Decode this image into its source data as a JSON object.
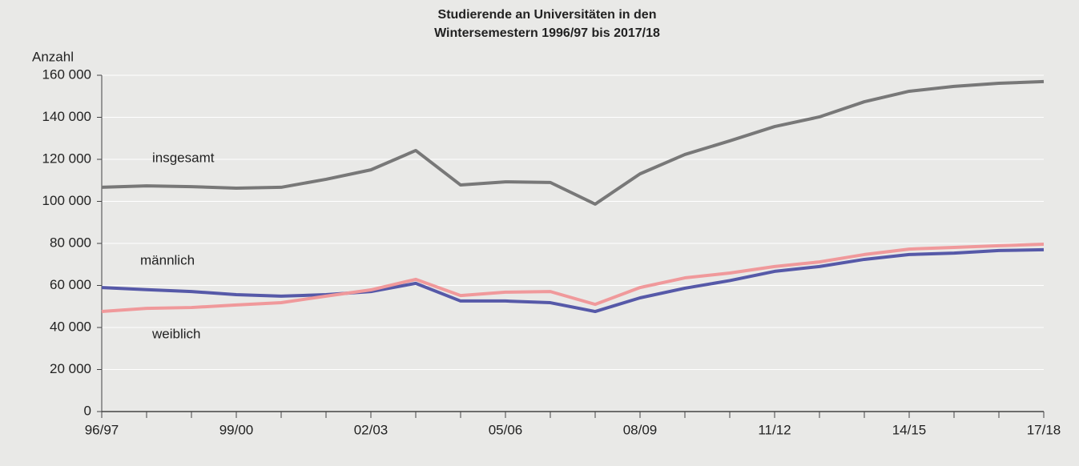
{
  "chart_data": {
    "type": "line",
    "title": [
      "Studierende an Universitäten in den",
      "Wintersemestern 1996/97 bis 2017/18"
    ],
    "y_label": "Anzahl",
    "categories": [
      "96/97",
      null,
      null,
      "99/00",
      null,
      null,
      "02/03",
      null,
      null,
      "05/06",
      null,
      null,
      "08/09",
      null,
      null,
      "11/12",
      null,
      null,
      "14/15",
      null,
      null,
      "17/18"
    ],
    "series": [
      {
        "name": "insgesamt",
        "color": "#787878",
        "values": [
          106700,
          107400,
          107000,
          106300,
          106700,
          110500,
          115000,
          124200,
          107800,
          109300,
          109000,
          98700,
          113100,
          122300,
          128800,
          135600,
          140200,
          147400,
          152400,
          154700,
          156200,
          157000
        ]
      },
      {
        "name": "männlich",
        "color": "#5659a8",
        "values": [
          59000,
          58000,
          57100,
          55600,
          54900,
          55600,
          57100,
          61000,
          52600,
          52600,
          51800,
          47600,
          54100,
          58700,
          62300,
          66700,
          69000,
          72400,
          74700,
          75400,
          76600,
          77000
        ]
      },
      {
        "name": "weiblich",
        "color": "#f0999b",
        "values": [
          47600,
          49100,
          49500,
          50700,
          51800,
          54900,
          57900,
          62900,
          55200,
          56800,
          57100,
          51000,
          59000,
          63600,
          65900,
          69000,
          71200,
          74700,
          77300,
          78100,
          78900,
          79600
        ]
      }
    ],
    "ylim": [
      0,
      160000
    ],
    "yticks": [
      0,
      {
        "value": 20000,
        "label": "20 000"
      },
      {
        "value": 40000,
        "label": "40 000"
      },
      {
        "value": 60000,
        "label": "60 000"
      },
      {
        "value": 80000,
        "label": "80 000"
      },
      {
        "value": 100000,
        "label": "100 000"
      },
      {
        "value": 120000,
        "label": "120 000"
      },
      {
        "value": 140000,
        "label": "140 000"
      },
      {
        "value": 160000,
        "label": "160 000"
      }
    ],
    "grid": true
  }
}
